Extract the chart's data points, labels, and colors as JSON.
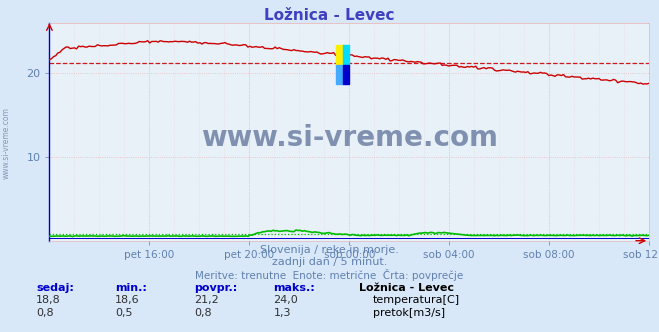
{
  "title": "Ložnica - Levec",
  "bg_color": "#d8e8f8",
  "plot_bg_color": "#e8f0f8",
  "grid_color": "#e8b8b8",
  "grid_dotted_color": "#e8b8b8",
  "left_spine_color": "#0000cc",
  "title_color": "#4040c0",
  "axis_label_color": "#6080b0",
  "text_color": "#6080b0",
  "watermark": "www.si-vreme.com",
  "watermark_color": "#8090b0",
  "subtitle1": "Slovenija / reke in morje.",
  "subtitle2": "zadnji dan / 5 minut.",
  "subtitle3": "Meritve: trenutne  Enote: metrične  Črta: povprečje",
  "xlabel_ticks": [
    "pet 16:00",
    "pet 20:00",
    "sob 00:00",
    "sob 04:00",
    "sob 08:00",
    "sob 12:00"
  ],
  "ylim": [
    0,
    26
  ],
  "yticks": [
    10,
    20
  ],
  "temp_color": "#cc0000",
  "flow_color": "#00bb00",
  "height_color": "#0000cc",
  "avg_temp": 21.2,
  "avg_flow": 0.8,
  "table_header_color": "#0000cc",
  "station_label": "Ložnica - Levec",
  "table_headers": [
    "sedaj:",
    "min.:",
    "povpr.:",
    "maks.:"
  ],
  "temp_row": [
    "18,8",
    "18,6",
    "21,2",
    "24,0"
  ],
  "flow_row": [
    "0,8",
    "0,5",
    "0,8",
    "1,3"
  ],
  "temp_label": "temperatura[C]",
  "flow_label": "pretok[m3/s]",
  "n_points": 288,
  "ymax": 26
}
